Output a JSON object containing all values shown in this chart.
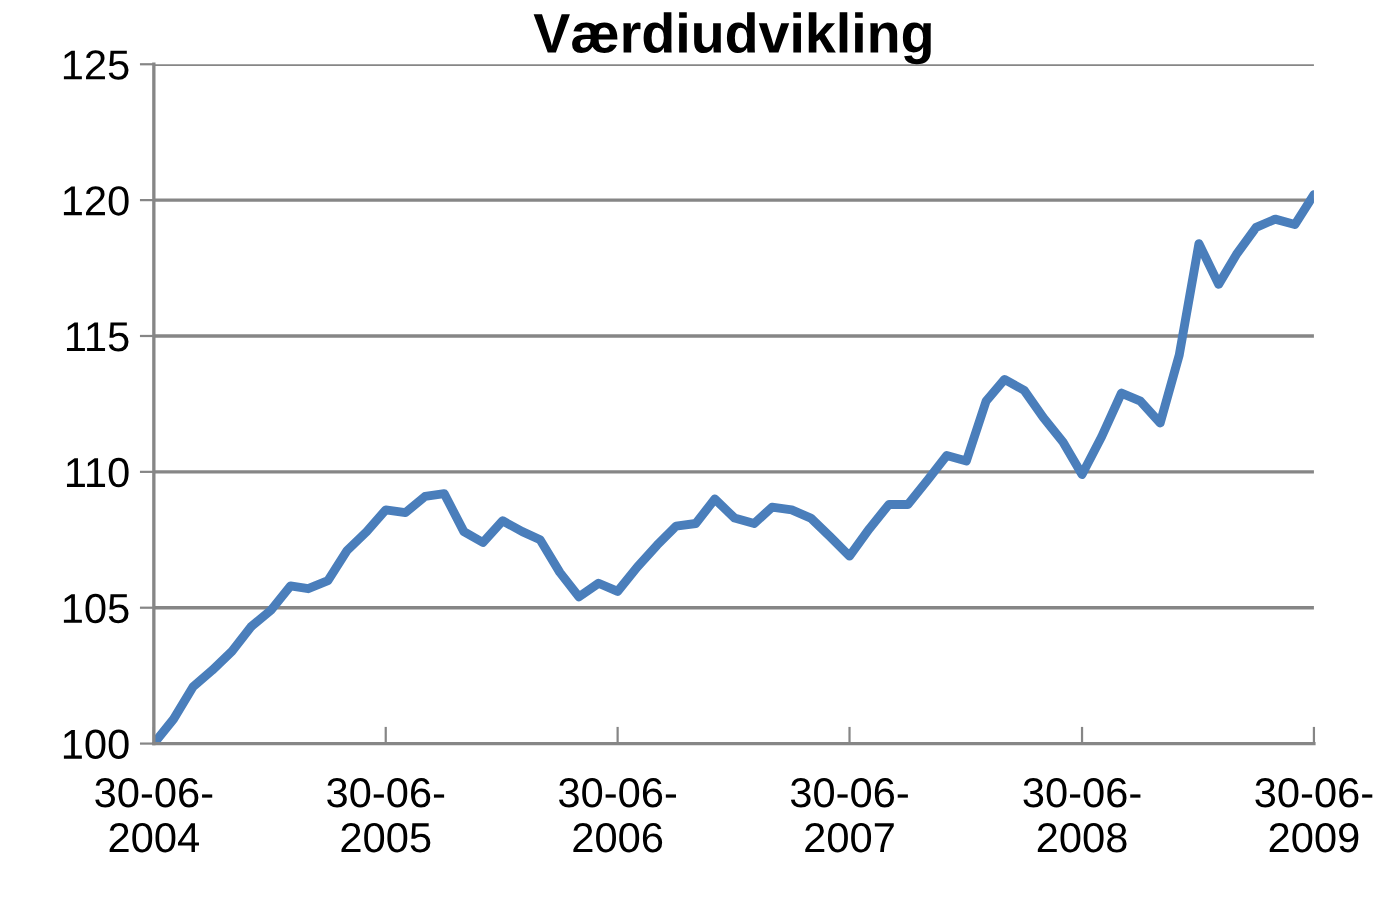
{
  "chart_data": {
    "type": "line",
    "title": "Værdiudvikling",
    "x": [
      "2004-06-30",
      "2004-07-31",
      "2004-08-31",
      "2004-09-30",
      "2004-10-31",
      "2004-11-30",
      "2004-12-31",
      "2005-01-31",
      "2005-02-28",
      "2005-03-31",
      "2005-04-30",
      "2005-05-31",
      "2005-06-30",
      "2005-07-31",
      "2005-08-31",
      "2005-09-30",
      "2005-10-31",
      "2005-11-30",
      "2005-12-31",
      "2006-01-31",
      "2006-02-28",
      "2006-03-31",
      "2006-04-30",
      "2006-05-31",
      "2006-06-30",
      "2006-07-31",
      "2006-08-31",
      "2006-09-30",
      "2006-10-31",
      "2006-11-30",
      "2006-12-31",
      "2007-01-31",
      "2007-02-28",
      "2007-03-31",
      "2007-04-30",
      "2007-05-31",
      "2007-06-30",
      "2007-07-31",
      "2007-08-31",
      "2007-09-30",
      "2007-10-31",
      "2007-11-30",
      "2007-12-31",
      "2008-01-31",
      "2008-02-29",
      "2008-03-31",
      "2008-04-30",
      "2008-05-31",
      "2008-06-30",
      "2008-07-31",
      "2008-08-31",
      "2008-09-30",
      "2008-10-31",
      "2008-11-30",
      "2008-12-31",
      "2009-01-31",
      "2009-02-28",
      "2009-03-31",
      "2009-04-30",
      "2009-05-31",
      "2009-06-30"
    ],
    "series": [
      {
        "color": "#4a7ebb",
        "values": [
          100.0,
          100.9,
          102.1,
          102.7,
          103.4,
          104.3,
          104.9,
          105.8,
          105.7,
          106.0,
          107.1,
          107.8,
          108.6,
          108.5,
          109.1,
          109.2,
          107.8,
          107.4,
          108.2,
          107.8,
          107.5,
          106.3,
          105.4,
          105.9,
          105.6,
          106.5,
          107.3,
          108.0,
          108.1,
          109.0,
          108.3,
          108.1,
          108.7,
          108.6,
          108.3,
          107.6,
          106.9,
          107.9,
          108.8,
          108.8,
          109.7,
          110.6,
          110.4,
          112.6,
          113.4,
          113.0,
          112.0,
          111.1,
          109.9,
          111.3,
          112.9,
          112.6,
          111.8,
          114.3,
          118.4,
          116.9,
          118.0,
          119.0,
          119.3,
          119.1,
          120.2
        ]
      }
    ],
    "xlim": [
      "2004-06-30",
      "2009-06-30"
    ],
    "xticks": [
      {
        "value": "2004-06-30",
        "label": "30-06-\n2004"
      },
      {
        "value": "2005-06-30",
        "label": "30-06-\n2005"
      },
      {
        "value": "2006-06-30",
        "label": "30-06-\n2006"
      },
      {
        "value": "2007-06-30",
        "label": "30-06-\n2007"
      },
      {
        "value": "2008-06-30",
        "label": "30-06-\n2008"
      },
      {
        "value": "2009-06-30",
        "label": "30-06-\n2009"
      }
    ],
    "ylim": [
      100,
      125
    ],
    "yticks": [
      100,
      105,
      110,
      115,
      120,
      125
    ],
    "grid": "y",
    "marker": "none",
    "line_style": "solid"
  }
}
